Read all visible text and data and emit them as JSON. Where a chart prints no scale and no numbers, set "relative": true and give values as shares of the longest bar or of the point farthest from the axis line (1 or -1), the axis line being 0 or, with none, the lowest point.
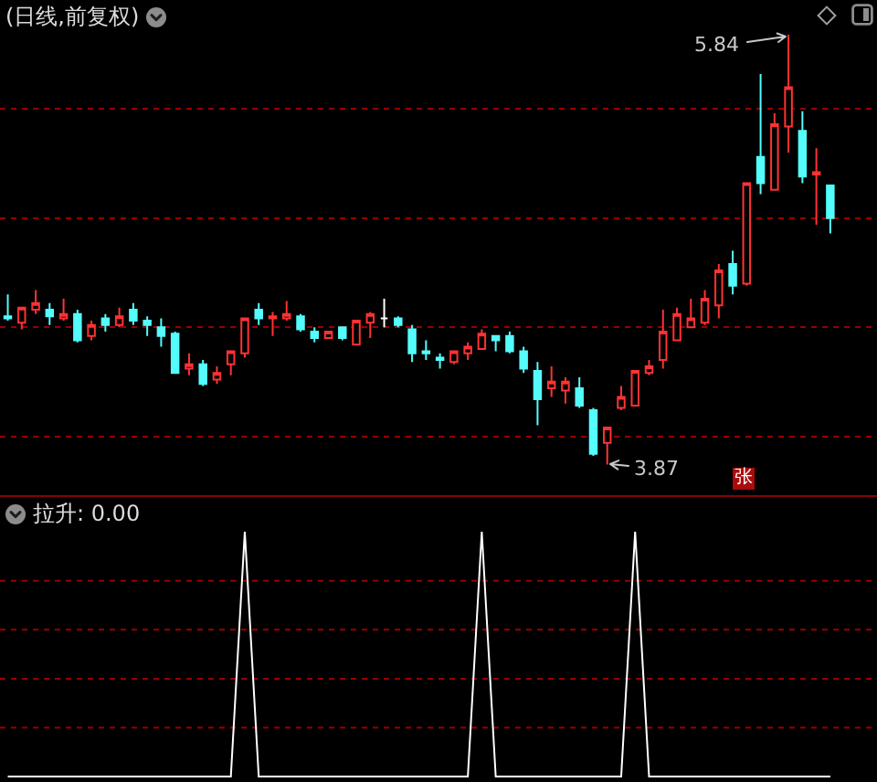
{
  "chart_data": [
    {
      "type": "candlestick",
      "title": "(日线,前复权)",
      "categories": [
        null,
        null,
        null,
        null,
        null,
        null,
        null,
        null,
        null,
        null,
        null,
        null,
        null,
        null,
        null,
        null,
        null,
        null,
        null,
        null,
        null,
        null,
        null,
        null,
        null,
        null,
        null,
        null,
        null,
        null,
        null,
        null,
        null,
        null,
        null,
        null,
        null,
        null,
        null,
        null,
        null,
        null,
        null,
        null,
        null,
        null,
        null,
        null,
        null,
        null,
        null,
        null,
        null,
        null,
        null,
        null,
        null,
        null,
        null,
        null
      ],
      "ohlc": [
        [
          4.55,
          4.65,
          4.53,
          4.54
        ],
        [
          4.52,
          4.59,
          4.49,
          4.59
        ],
        [
          4.58,
          4.67,
          4.56,
          4.61
        ],
        [
          4.58,
          4.61,
          4.51,
          4.55
        ],
        [
          4.54,
          4.63,
          4.53,
          4.56
        ],
        [
          4.56,
          4.58,
          4.43,
          4.44
        ],
        [
          4.46,
          4.53,
          4.44,
          4.51
        ],
        [
          4.54,
          4.56,
          4.48,
          4.51
        ],
        [
          4.51,
          4.59,
          4.5,
          4.55
        ],
        [
          4.58,
          4.61,
          4.51,
          4.53
        ],
        [
          4.53,
          4.55,
          4.46,
          4.51
        ],
        [
          4.5,
          4.54,
          4.41,
          4.46
        ],
        [
          4.47,
          4.48,
          4.29,
          4.29
        ],
        [
          4.31,
          4.38,
          4.28,
          4.33
        ],
        [
          4.33,
          4.35,
          4.23,
          4.24
        ],
        [
          4.26,
          4.32,
          4.24,
          4.29
        ],
        [
          4.33,
          4.39,
          4.28,
          4.39
        ],
        [
          4.38,
          4.54,
          4.36,
          4.54
        ],
        [
          4.58,
          4.61,
          4.51,
          4.54
        ],
        [
          4.54,
          4.57,
          4.46,
          4.55
        ],
        [
          4.54,
          4.62,
          4.53,
          4.56
        ],
        [
          4.55,
          4.56,
          4.48,
          4.49
        ],
        [
          4.48,
          4.5,
          4.43,
          4.45
        ],
        [
          4.45,
          4.48,
          4.45,
          4.48
        ],
        [
          4.5,
          4.5,
          4.44,
          4.45
        ],
        [
          4.42,
          4.53,
          4.42,
          4.53
        ],
        [
          4.52,
          4.57,
          4.45,
          4.56
        ],
        [
          4.54,
          4.63,
          4.5,
          4.54
        ],
        [
          4.54,
          4.55,
          4.5,
          4.51
        ],
        [
          4.49,
          4.51,
          4.34,
          4.38
        ],
        [
          4.39,
          4.44,
          4.35,
          4.38
        ],
        [
          4.36,
          4.38,
          4.31,
          4.35
        ],
        [
          4.34,
          4.39,
          4.33,
          4.39
        ],
        [
          4.38,
          4.43,
          4.35,
          4.41
        ],
        [
          4.4,
          4.49,
          4.4,
          4.47
        ],
        [
          4.46,
          4.46,
          4.39,
          4.44
        ],
        [
          4.46,
          4.48,
          4.38,
          4.39
        ],
        [
          4.39,
          4.41,
          4.29,
          4.31
        ],
        [
          4.3,
          4.34,
          4.05,
          4.17
        ],
        [
          4.22,
          4.32,
          4.18,
          4.25
        ],
        [
          4.21,
          4.27,
          4.15,
          4.25
        ],
        [
          4.22,
          4.27,
          4.13,
          4.14
        ],
        [
          4.12,
          4.13,
          3.91,
          3.92
        ],
        [
          3.97,
          4.04,
          3.87,
          4.04
        ],
        [
          4.13,
          4.23,
          4.12,
          4.18
        ],
        [
          4.14,
          4.3,
          4.14,
          4.3
        ],
        [
          4.29,
          4.35,
          4.28,
          4.32
        ],
        [
          4.35,
          4.58,
          4.31,
          4.48
        ],
        [
          4.44,
          4.59,
          4.44,
          4.56
        ],
        [
          4.5,
          4.63,
          4.5,
          4.54
        ],
        [
          4.52,
          4.67,
          4.51,
          4.63
        ],
        [
          4.6,
          4.79,
          4.54,
          4.76
        ],
        [
          4.79,
          4.85,
          4.65,
          4.69
        ],
        [
          4.7,
          5.16,
          4.69,
          5.16
        ],
        [
          5.28,
          5.66,
          5.11,
          5.16
        ],
        [
          5.13,
          5.48,
          5.13,
          5.43
        ],
        [
          5.42,
          5.84,
          5.3,
          5.6
        ],
        [
          5.4,
          5.49,
          5.16,
          5.19
        ],
        [
          5.2,
          5.32,
          4.97,
          5.21
        ],
        [
          5.15,
          5.15,
          4.93,
          5.0
        ]
      ],
      "colors": [
        "#54fcfc",
        "#ff3232",
        "#ff3232",
        "#54fcfc",
        "#ff3232",
        "#54fcfc",
        "#ff3232",
        "#54fcfc",
        "#ff3232",
        "#54fcfc",
        "#54fcfc",
        "#54fcfc",
        "#54fcfc",
        "#ff3232",
        "#54fcfc",
        "#ff3232",
        "#ff3232",
        "#ff3232",
        "#54fcfc",
        "#ff3232",
        "#ff3232",
        "#54fcfc",
        "#54fcfc",
        "#ff3232",
        "#54fcfc",
        "#ff3232",
        "#ff3232",
        "#ffffff",
        "#54fcfc",
        "#54fcfc",
        "#54fcfc",
        "#54fcfc",
        "#ff3232",
        "#ff3232",
        "#ff3232",
        "#54fcfc",
        "#54fcfc",
        "#54fcfc",
        "#54fcfc",
        "#ff3232",
        "#ff3232",
        "#54fcfc",
        "#54fcfc",
        "#ff3232",
        "#ff3232",
        "#ff3232",
        "#ff3232",
        "#ff3232",
        "#ff3232",
        "#ff3232",
        "#ff3232",
        "#ff3232",
        "#54fcfc",
        "#ff3232",
        "#54fcfc",
        "#ff3232",
        "#ff3232",
        "#54fcfc",
        "#ff3232",
        "#54fcfc"
      ],
      "yticks": [
        {
          "value": 4,
          "label": null
        },
        {
          "value": 4.5,
          "label": null
        },
        {
          "value": 5,
          "label": null
        },
        {
          "value": 5.5,
          "label": null
        }
      ],
      "grid": "y",
      "annotations": [
        "5.84",
        "3.87",
        "张"
      ]
    },
    {
      "type": "line",
      "title": "拉升: 0.00",
      "relative": true,
      "categories": [
        null,
        null,
        null,
        null,
        null,
        null,
        null,
        null,
        null,
        null,
        null,
        null,
        null,
        null,
        null,
        null,
        null,
        null,
        null,
        null,
        null,
        null,
        null,
        null,
        null,
        null,
        null,
        null,
        null,
        null,
        null,
        null,
        null,
        null,
        null,
        null,
        null,
        null,
        null,
        null,
        null,
        null,
        null,
        null,
        null,
        null,
        null,
        null,
        null,
        null,
        null,
        null,
        null,
        null,
        null,
        null,
        null,
        null,
        null,
        null
      ],
      "series": [
        {
          "color": "#ffffff",
          "values": [
            0,
            0,
            0,
            0,
            0,
            0,
            0,
            0,
            0,
            0,
            0,
            0,
            0,
            0,
            0,
            0,
            0,
            1,
            0,
            0,
            0,
            0,
            0,
            0,
            0,
            0,
            0,
            0,
            0,
            0,
            0,
            0,
            0,
            0,
            1,
            0,
            0,
            0,
            0,
            0,
            0,
            0,
            0,
            0,
            0,
            1,
            0,
            0,
            0,
            0,
            0,
            0,
            0,
            0,
            0,
            0,
            0,
            0,
            0,
            0
          ]
        }
      ],
      "ref_lines": [
        {
          "axis": "y",
          "value": 0.2,
          "label": null,
          "color": "#9a0000",
          "line_style": "dotted"
        },
        {
          "axis": "y",
          "value": 0.4,
          "label": null,
          "color": "#9a0000",
          "line_style": "dotted"
        },
        {
          "axis": "y",
          "value": 0.6,
          "label": null,
          "color": "#9a0000",
          "line_style": "dotted"
        },
        {
          "axis": "y",
          "value": 0.8,
          "label": null,
          "color": "#9a0000",
          "line_style": "dotted"
        }
      ]
    }
  ]
}
